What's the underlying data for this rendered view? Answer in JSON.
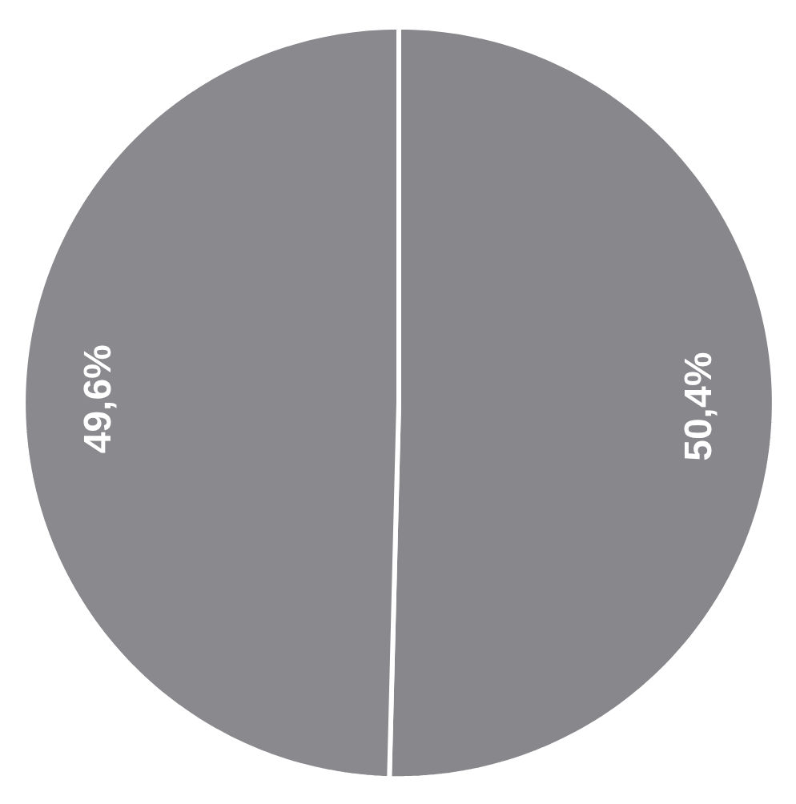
{
  "chart_data": {
    "type": "pie",
    "categories": [
      null,
      null
    ],
    "values": [
      50.4,
      49.6
    ],
    "colors": [
      "#88888c",
      "#8a8a8e"
    ],
    "value_labels": [
      "50,4%",
      "49,6%"
    ]
  }
}
